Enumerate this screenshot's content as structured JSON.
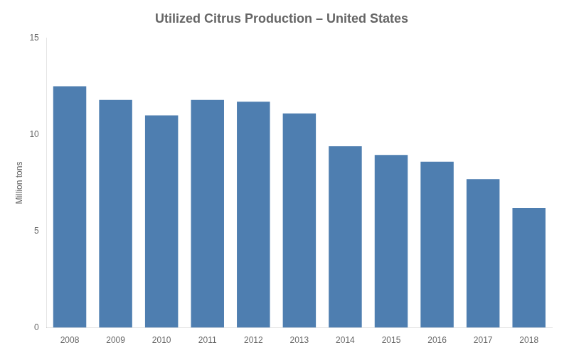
{
  "chart_data": {
    "type": "bar",
    "title": "Utilized Citrus Production – United States",
    "ylabel": "Million tons",
    "categories": [
      "2008",
      "2009",
      "2010",
      "2011",
      "2012",
      "2013",
      "2014",
      "2015",
      "2016",
      "2017",
      "2018"
    ],
    "values": [
      12.5,
      11.8,
      11.0,
      11.8,
      11.7,
      11.1,
      9.4,
      8.95,
      8.6,
      7.7,
      6.2
    ],
    "color": "#4e7eb0",
    "ylim": [
      0,
      15
    ],
    "yticks": [
      0,
      5,
      10,
      15
    ],
    "grid": false
  }
}
